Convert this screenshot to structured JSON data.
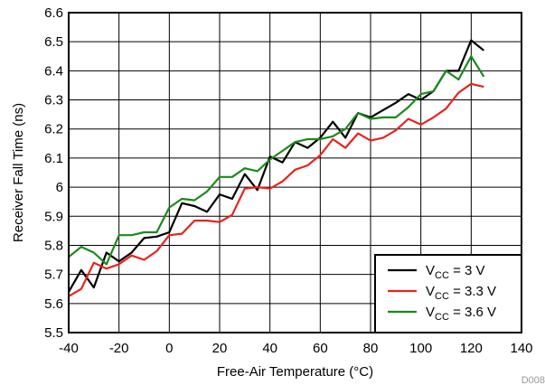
{
  "chart_data": {
    "type": "line",
    "xlabel": "Free-Air Temperature (°C)",
    "ylabel": "Receiver Fall Time (ns)",
    "xlim": [
      -40,
      140
    ],
    "ylim": [
      5.5,
      6.6
    ],
    "xticks": [
      -40,
      -20,
      0,
      20,
      40,
      60,
      80,
      100,
      120,
      140
    ],
    "xtick_labels": [
      "-40",
      "-20",
      "0",
      "20",
      "40",
      "60",
      "80",
      "100",
      "120",
      "140"
    ],
    "yticks": [
      5.5,
      5.6,
      5.7,
      5.8,
      5.9,
      6.0,
      6.1,
      6.2,
      6.3,
      6.4,
      6.5,
      6.6
    ],
    "ytick_labels": [
      "5.5",
      "5.6",
      "5.7",
      "5.8",
      "5.9",
      "6",
      "6.1",
      "6.2",
      "6.3",
      "6.4",
      "6.5",
      "6.6"
    ],
    "grid": true,
    "legend_position": "bottom-right",
    "x": [
      -40,
      -35,
      -30,
      -25,
      -20,
      -15,
      -10,
      -5,
      0,
      5,
      10,
      15,
      20,
      25,
      30,
      35,
      40,
      45,
      50,
      55,
      60,
      65,
      70,
      75,
      80,
      85,
      90,
      95,
      100,
      105,
      110,
      115,
      120,
      125
    ],
    "series": [
      {
        "name_main": "V",
        "name_sub": "CC",
        "name_rest": " = 3 V",
        "color": "#000000",
        "values": [
          5.64,
          5.715,
          5.655,
          5.775,
          5.745,
          5.775,
          5.825,
          5.83,
          5.845,
          5.945,
          5.935,
          5.915,
          5.975,
          5.96,
          6.045,
          5.99,
          6.105,
          6.085,
          6.155,
          6.135,
          6.17,
          6.225,
          6.17,
          6.255,
          6.24,
          6.265,
          6.29,
          6.32,
          6.3,
          6.33,
          6.4,
          6.4,
          6.505,
          6.47
        ]
      },
      {
        "name_main": "V",
        "name_sub": "CC",
        "name_rest": " = 3.3 V",
        "color": "#e8231d",
        "values": [
          5.625,
          5.65,
          5.74,
          5.72,
          5.735,
          5.765,
          5.75,
          5.78,
          5.835,
          5.84,
          5.885,
          5.885,
          5.88,
          5.905,
          5.995,
          6.0,
          5.995,
          6.02,
          6.06,
          6.075,
          6.11,
          6.165,
          6.135,
          6.185,
          6.16,
          6.17,
          6.195,
          6.235,
          6.215,
          6.24,
          6.27,
          6.325,
          6.355,
          6.345
        ]
      },
      {
        "name_main": "V",
        "name_sub": "CC",
        "name_rest": " = 3.6 V",
        "color": "#1a8a1a",
        "values": [
          5.76,
          5.795,
          5.775,
          5.735,
          5.835,
          5.835,
          5.845,
          5.845,
          5.93,
          5.96,
          5.955,
          5.985,
          6.035,
          6.035,
          6.065,
          6.055,
          6.095,
          6.125,
          6.155,
          6.165,
          6.165,
          6.175,
          6.2,
          6.255,
          6.235,
          6.24,
          6.24,
          6.275,
          6.32,
          6.33,
          6.4,
          6.37,
          6.45,
          6.38
        ]
      }
    ]
  },
  "footer_id": "D008"
}
